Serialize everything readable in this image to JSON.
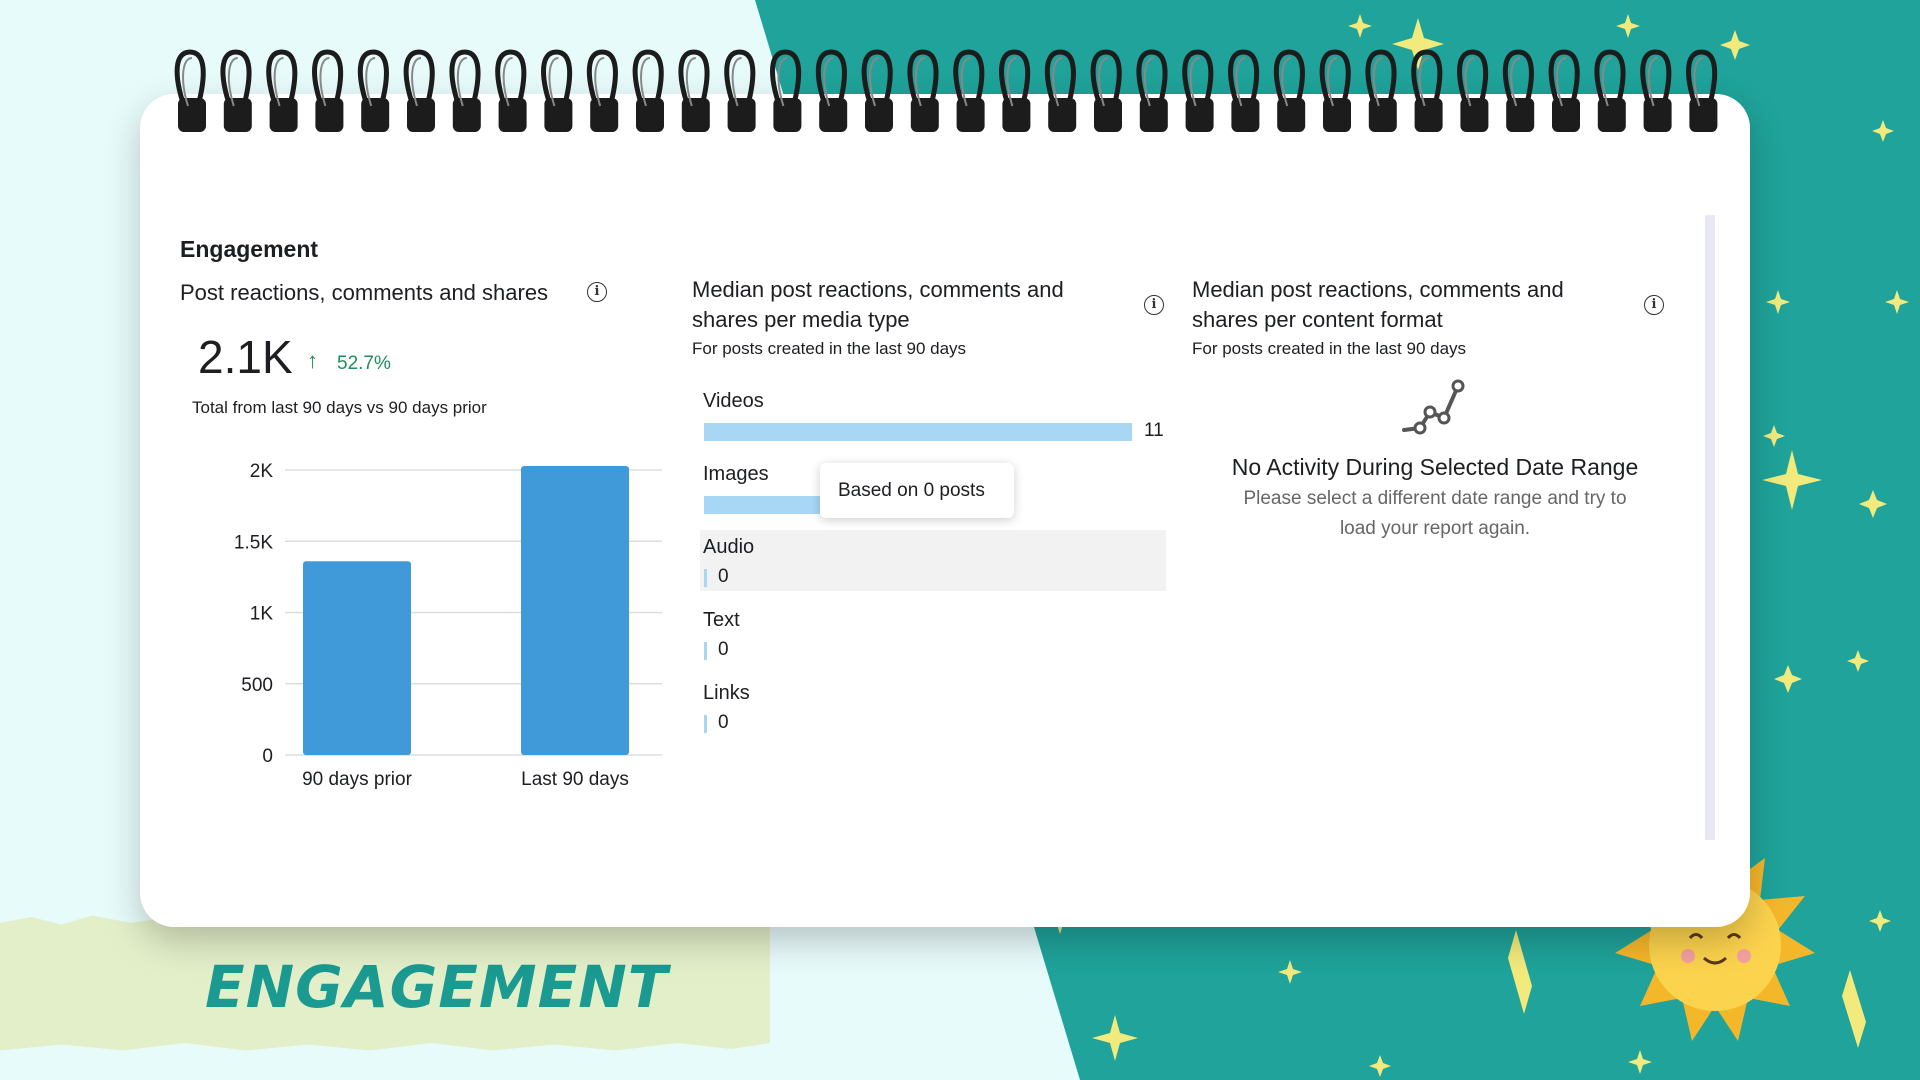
{
  "banner_title": "ENGAGEMENT",
  "section_title": "Engagement",
  "panel1": {
    "title": "Post reactions, comments and shares",
    "total": "2.1K",
    "change": "52.7%",
    "subtitle": "Total from last 90 days vs 90 days prior"
  },
  "chart_data": {
    "type": "bar",
    "categories": [
      "90 days prior",
      "Last 90 days"
    ],
    "values": [
      1360,
      2080
    ],
    "ylim": [
      0,
      2000
    ],
    "yticks": [
      "0",
      "500",
      "1K",
      "1.5K",
      "2K"
    ],
    "bar_color": "#409ad9",
    "grid": true
  },
  "panel2": {
    "title_line1": "Median post reactions, comments and",
    "title_line2": "shares per media type",
    "subtitle": "For posts created in the last 90 days",
    "rows": [
      {
        "label": "Videos",
        "value": "11",
        "fraction": 1.0
      },
      {
        "label": "Images",
        "value": "",
        "fraction": 0.27
      },
      {
        "label": "Audio",
        "value": "0",
        "fraction": 0
      },
      {
        "label": "Text",
        "value": "0",
        "fraction": 0
      },
      {
        "label": "Links",
        "value": "0",
        "fraction": 0
      }
    ],
    "tooltip": "Based on 0 posts",
    "bar_color": "#a7d7f4"
  },
  "panel3": {
    "title_line1": "Median post reactions, comments and",
    "title_line2": "shares per content format",
    "subtitle": "For posts created in the last 90 days",
    "empty_title": "No Activity During Selected Date Range",
    "empty_line1": "Please select a different date range and try to",
    "empty_line2": "load your report again."
  },
  "colors": {
    "teal": "#1fa39a",
    "accent_green": "#1e8e5a",
    "star": "#f2ea7c"
  }
}
